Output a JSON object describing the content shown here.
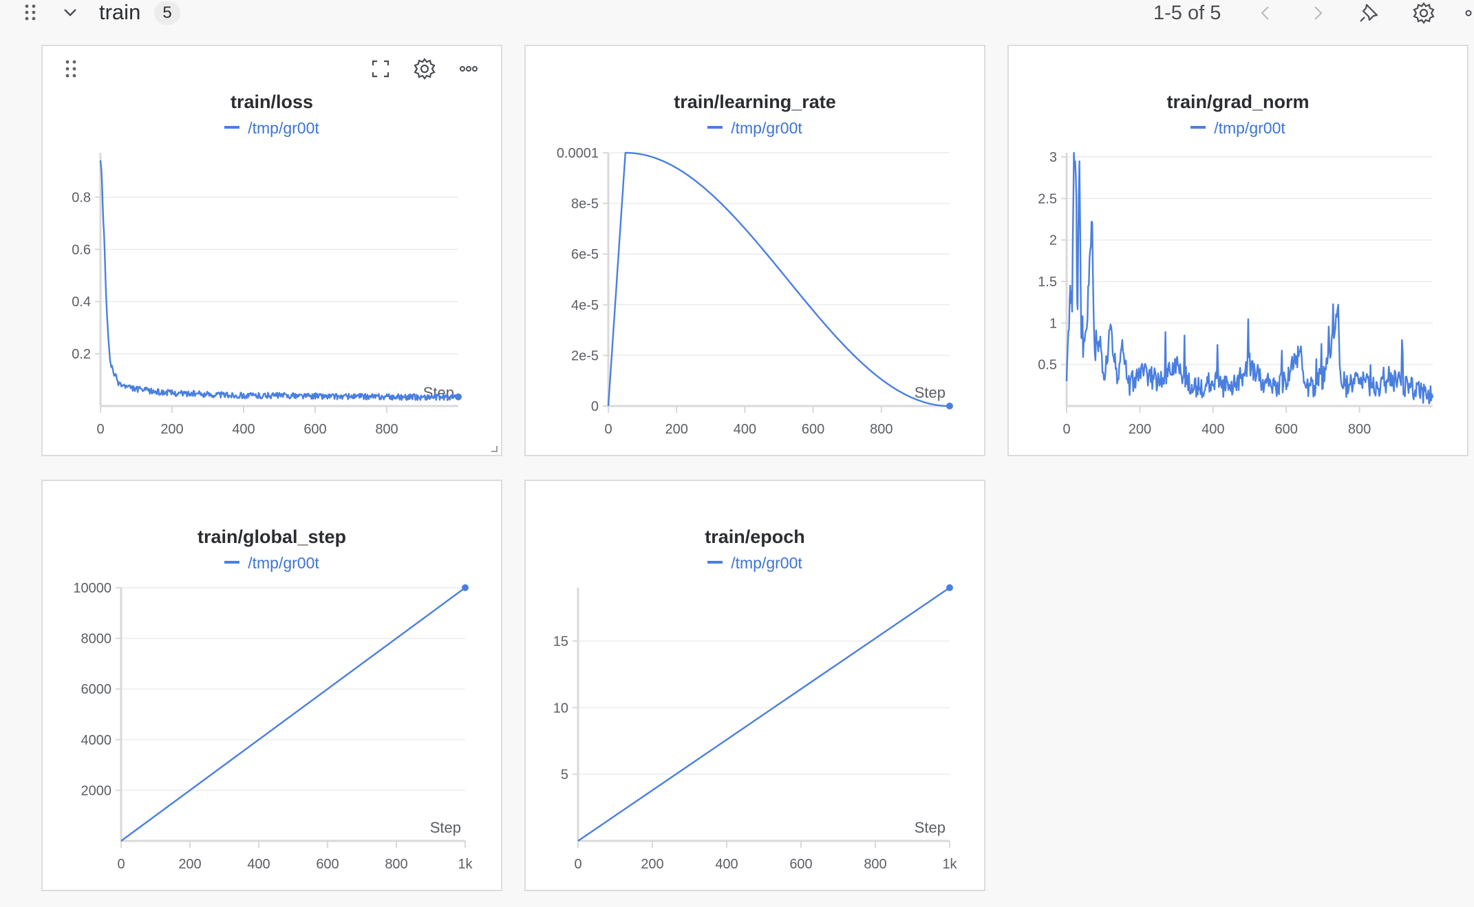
{
  "header": {
    "section_title": "train",
    "panel_count": "5",
    "pagination": "1-5 of 5"
  },
  "icons": {
    "drag_handle": "drag-handle-icon",
    "collapse": "chevron-down-icon",
    "prev": "chevron-left-icon",
    "next": "chevron-right-icon",
    "pin": "pin-icon",
    "settings": "gear-icon",
    "fullscreen": "fullscreen-icon",
    "more": "ellipsis-icon",
    "resize": "resize-handle-icon"
  },
  "colors": {
    "series": "#4a7fe0",
    "legend_text": "#3c74d6",
    "grid": "#ececec",
    "axis": "#d9d9d9"
  },
  "chart_data": [
    {
      "type": "line",
      "title": "train/loss",
      "legend": [
        "/tmp/gr00t"
      ],
      "xlabel": "Step",
      "xlim": [
        0,
        1000
      ],
      "ylim": [
        0,
        0.97
      ],
      "xticks": [
        "0",
        "200",
        "400",
        "600",
        "800"
      ],
      "yticks": [
        "0.2",
        "0.4",
        "0.6",
        "0.8"
      ],
      "series": [
        {
          "name": "/tmp/gr00t",
          "x": [
            0,
            3,
            6,
            10,
            15,
            20,
            25,
            30,
            40,
            50,
            60,
            80,
            100,
            150,
            200,
            300,
            400,
            500,
            600,
            700,
            800,
            900,
            1000
          ],
          "y": [
            0.95,
            0.9,
            0.78,
            0.65,
            0.45,
            0.3,
            0.2,
            0.15,
            0.12,
            0.09,
            0.08,
            0.07,
            0.065,
            0.055,
            0.05,
            0.045,
            0.04,
            0.04,
            0.038,
            0.036,
            0.035,
            0.034,
            0.035
          ]
        }
      ]
    },
    {
      "type": "line",
      "title": "train/learning_rate",
      "legend": [
        "/tmp/gr00t"
      ],
      "xlabel": "Step",
      "xlim": [
        0,
        1000
      ],
      "ylim": [
        0,
        0.0001
      ],
      "xticks": [
        "0",
        "200",
        "400",
        "600",
        "800"
      ],
      "yticks": [
        "0",
        "2e-5",
        "4e-5",
        "6e-5",
        "8e-5",
        "0.0001"
      ],
      "series": [
        {
          "name": "/tmp/gr00t",
          "x": [
            0,
            50,
            100,
            200,
            300,
            400,
            500,
            600,
            700,
            800,
            900,
            1000
          ],
          "y": [
            0,
            0.0001,
            9.92e-05,
            9.36e-05,
            8.32e-05,
            6.9e-05,
            5.25e-05,
            3.57e-05,
            2.03e-05,
            8.3e-06,
            1.5e-06,
            0
          ]
        }
      ]
    },
    {
      "type": "line",
      "title": "train/grad_norm",
      "legend": [
        "/tmp/gr00t"
      ],
      "xlabel": "",
      "xlim": [
        0,
        1000
      ],
      "ylim": [
        0,
        3.05
      ],
      "xticks": [
        "0",
        "200",
        "400",
        "600",
        "800"
      ],
      "yticks": [
        "0.5",
        "1",
        "1.5",
        "2",
        "2.5",
        "3"
      ],
      "series": [
        {
          "name": "/tmp/gr00t",
          "x": [
            0,
            5,
            10,
            15,
            20,
            25,
            28,
            30,
            35,
            40,
            45,
            55,
            70,
            75,
            90,
            100,
            120,
            140,
            150,
            170,
            200,
            250,
            300,
            350,
            400,
            450,
            500,
            550,
            600,
            640,
            650,
            700,
            740,
            750,
            800,
            850,
            900,
            950,
            1000
          ],
          "y": [
            0.3,
            0.8,
            1.4,
            1.2,
            3.05,
            2.9,
            1.5,
            1.2,
            3.05,
            0.9,
            0.6,
            1.0,
            2.3,
            0.5,
            0.8,
            0.3,
            0.9,
            0.3,
            0.8,
            0.25,
            0.4,
            0.3,
            0.5,
            0.2,
            0.3,
            0.2,
            0.5,
            0.2,
            0.3,
            0.7,
            0.2,
            0.3,
            1.1,
            0.2,
            0.3,
            0.2,
            0.3,
            0.2,
            0.1
          ]
        }
      ]
    },
    {
      "type": "line",
      "title": "train/global_step",
      "legend": [
        "/tmp/gr00t"
      ],
      "xlabel": "Step",
      "xlim": [
        0,
        1000
      ],
      "ylim": [
        0,
        10000
      ],
      "xticks": [
        "0",
        "200",
        "400",
        "600",
        "800",
        "1k"
      ],
      "yticks": [
        "2000",
        "4000",
        "6000",
        "8000",
        "10000"
      ],
      "series": [
        {
          "name": "/tmp/gr00t",
          "x": [
            0,
            1000
          ],
          "y": [
            0,
            10000
          ]
        }
      ]
    },
    {
      "type": "line",
      "title": "train/epoch",
      "legend": [
        "/tmp/gr00t"
      ],
      "xlabel": "Step",
      "xlim": [
        0,
        1000
      ],
      "ylim": [
        0,
        19
      ],
      "xticks": [
        "0",
        "200",
        "400",
        "600",
        "800",
        "1k"
      ],
      "yticks": [
        "5",
        "10",
        "15"
      ],
      "series": [
        {
          "name": "/tmp/gr00t",
          "x": [
            0,
            1000
          ],
          "y": [
            0,
            19
          ]
        }
      ]
    }
  ]
}
